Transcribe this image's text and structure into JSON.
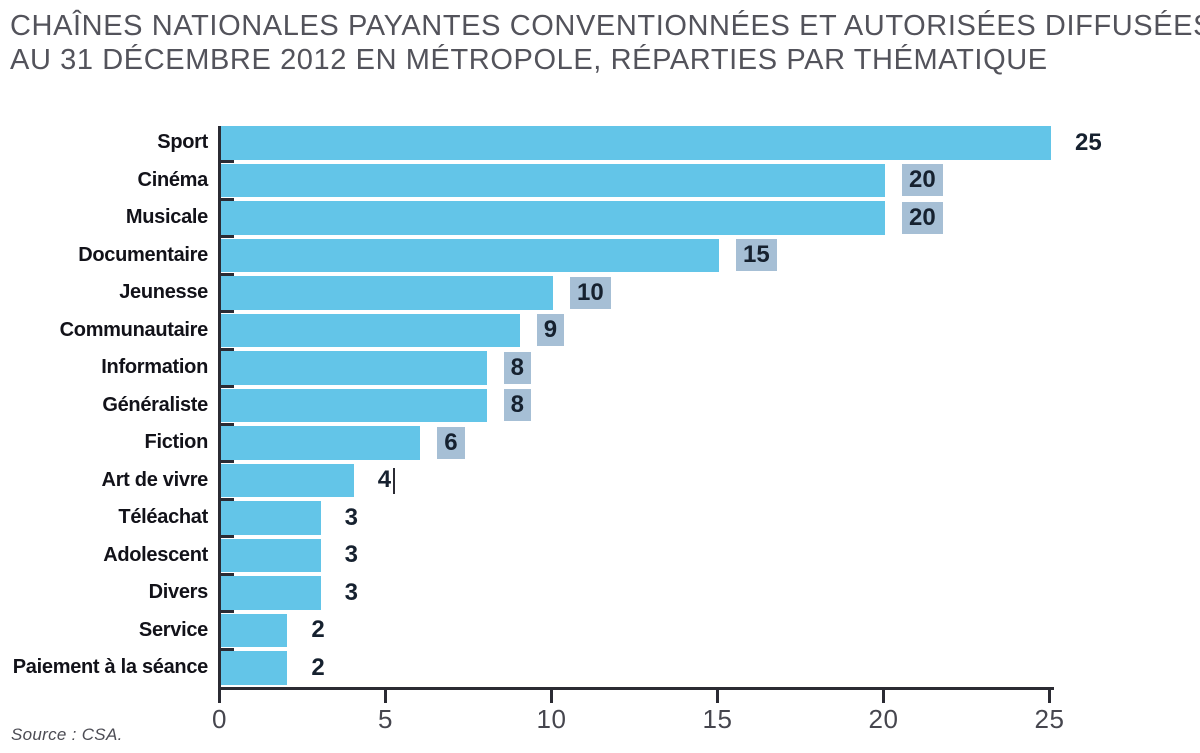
{
  "title_lines": [
    "CHAÎNES NATIONALES PAYANTES CONVENTIONNÉES ET AUTORISÉES DIFFUSÉES",
    "AU 31 DÉCEMBRE 2012 EN MÉTROPOLE, RÉPARTIES PAR THÉMATIQUE"
  ],
  "source": "Source : CSA.",
  "colors": {
    "bar": "#63c5e8",
    "axis": "#2b2b33",
    "value_highlight": "#a6bfd5",
    "value_text": "#16212f",
    "category_text": "#121219",
    "title_text": "#53535b"
  },
  "chart_data": {
    "type": "bar",
    "orientation": "horizontal",
    "title": "Chaînes nationales payantes conventionnées et autorisées diffusées au 31 décembre 2012 en métropole, réparties par thématique",
    "categories": [
      "Sport",
      "Cinéma",
      "Musicale",
      "Documentaire",
      "Jeunesse",
      "Communautaire",
      "Information",
      "Généraliste",
      "Fiction",
      "Art de vivre",
      "Téléachat",
      "Adolescent",
      "Divers",
      "Service",
      "Paiement à la séance"
    ],
    "values": [
      25,
      20,
      20,
      15,
      10,
      9,
      8,
      8,
      6,
      4,
      3,
      3,
      3,
      2,
      2
    ],
    "value_highlighted": [
      false,
      true,
      true,
      true,
      true,
      true,
      true,
      true,
      true,
      false,
      false,
      false,
      false,
      false,
      false
    ],
    "caret_after_value": [
      false,
      false,
      false,
      false,
      false,
      false,
      false,
      false,
      false,
      true,
      false,
      false,
      false,
      false,
      false
    ],
    "x_ticks": [
      0,
      5,
      10,
      15,
      20,
      25
    ],
    "xlim": [
      0,
      25
    ],
    "xlabel": "",
    "ylabel": "",
    "grid": false,
    "legend": false,
    "value_labels_shown": true
  }
}
